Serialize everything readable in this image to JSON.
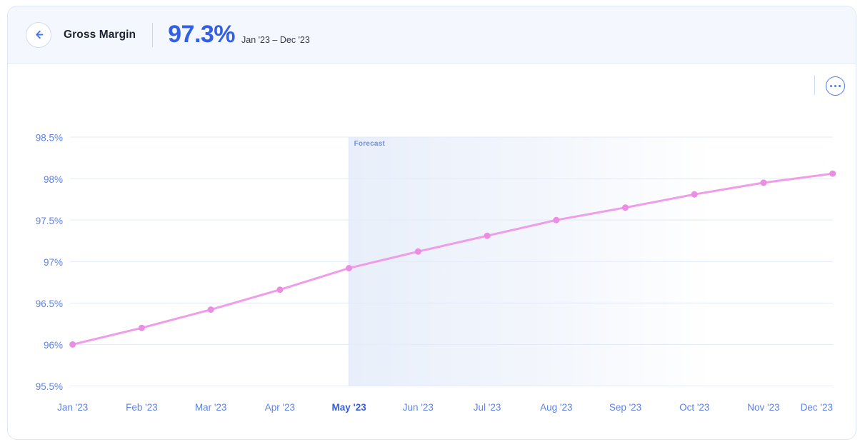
{
  "header": {
    "title": "Gross Margin",
    "value": "97.3%",
    "date_range": "Jan '23 – Dec '23"
  },
  "chart_data": {
    "type": "line",
    "title": "Gross Margin",
    "categories": [
      "Jan '23",
      "Feb '23",
      "Mar '23",
      "Apr '23",
      "May '23",
      "Jun '23",
      "Jul '23",
      "Aug '23",
      "Sep '23",
      "Oct '23",
      "Nov '23",
      "Dec '23"
    ],
    "values": [
      96.0,
      96.2,
      96.42,
      96.66,
      96.92,
      97.12,
      97.31,
      97.5,
      97.65,
      97.81,
      97.95,
      98.06
    ],
    "unit": "%",
    "xlabel": "",
    "ylabel": "",
    "ylim": [
      95.5,
      98.5
    ],
    "yticks": [
      95.5,
      96,
      96.5,
      97,
      97.5,
      98,
      98.5
    ],
    "ytick_labels": [
      "95.5%",
      "96%",
      "96.5%",
      "97%",
      "97.5%",
      "98%",
      "98.5%"
    ],
    "grid": true,
    "legend": false,
    "highlighted_category": "May '23",
    "forecast": {
      "label": "Forecast",
      "start_category": "May '23",
      "start_index": 4
    },
    "colors": {
      "line": "#f09ce8",
      "point": "#e98ee2",
      "grid": "#e4e9f8",
      "axis_label": "#5d83e8",
      "axis_label_highlight": "#3a5fd6",
      "forecast_fill": "#e7eefa",
      "forecast_boundary": "#dce4f4",
      "forecast_label": "#6e8ee8",
      "accent_blue": "#335fe4"
    }
  }
}
